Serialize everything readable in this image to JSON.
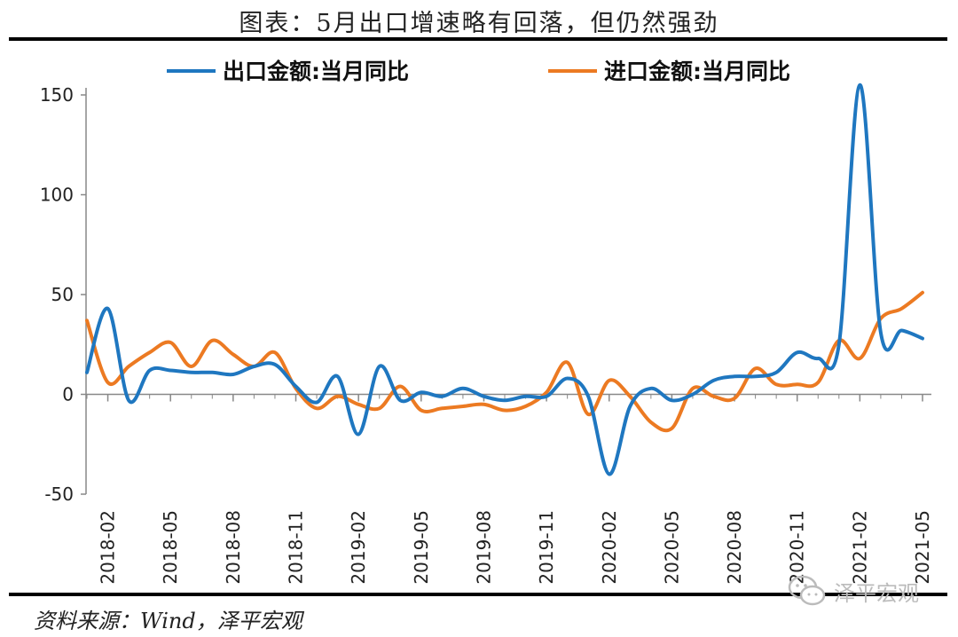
{
  "title": "图表：5月出口增速略有回落，但仍然强劲",
  "source": "资料来源：Wind，泽平宏观",
  "watermark": "泽平宏观",
  "chart_data": {
    "type": "line",
    "ylim": [
      -50,
      150
    ],
    "yticks": [
      -50,
      0,
      50,
      100,
      150
    ],
    "x_tick_labels": [
      "2018-02",
      "2018-05",
      "2018-08",
      "2018-11",
      "2019-02",
      "2019-05",
      "2019-08",
      "2019-11",
      "2020-02",
      "2020-05",
      "2020-08",
      "2020-11",
      "2021-02",
      "2021-05"
    ],
    "legend_position": "top",
    "x": [
      "2018-01",
      "2018-02",
      "2018-03",
      "2018-04",
      "2018-05",
      "2018-06",
      "2018-07",
      "2018-08",
      "2018-09",
      "2018-10",
      "2018-11",
      "2018-12",
      "2019-01",
      "2019-02",
      "2019-03",
      "2019-04",
      "2019-05",
      "2019-06",
      "2019-07",
      "2019-08",
      "2019-09",
      "2019-10",
      "2019-11",
      "2019-12",
      "2020-01",
      "2020-02",
      "2020-03",
      "2020-04",
      "2020-05",
      "2020-06",
      "2020-07",
      "2020-08",
      "2020-09",
      "2020-10",
      "2020-11",
      "2020-12",
      "2021-01",
      "2021-02",
      "2021-03",
      "2021-04",
      "2021-05"
    ],
    "series": [
      {
        "name": "出口金额:当月同比",
        "color": "#1f77c0",
        "values": [
          11,
          43,
          -3,
          12,
          12,
          11,
          11,
          10,
          14,
          15,
          4,
          -4,
          9,
          -20,
          14,
          -3,
          1,
          -1,
          3,
          -1,
          -3,
          -1,
          -1,
          8,
          -1,
          -40,
          -6,
          3,
          -3,
          0,
          7,
          9,
          9,
          11,
          21,
          18,
          25,
          155,
          31,
          32,
          28
        ]
      },
      {
        "name": "进口金额:当月同比",
        "color": "#ec7a22",
        "values": [
          37,
          6,
          14,
          21,
          26,
          14,
          27,
          20,
          14,
          21,
          3,
          -7,
          -1,
          -5,
          -7,
          4,
          -8,
          -7,
          -6,
          -5,
          -8,
          -6,
          1,
          16,
          -10,
          7,
          -1,
          -14,
          -17,
          3,
          -1,
          -2,
          13,
          5,
          5,
          6,
          27,
          18,
          38,
          43,
          51
        ]
      }
    ]
  }
}
